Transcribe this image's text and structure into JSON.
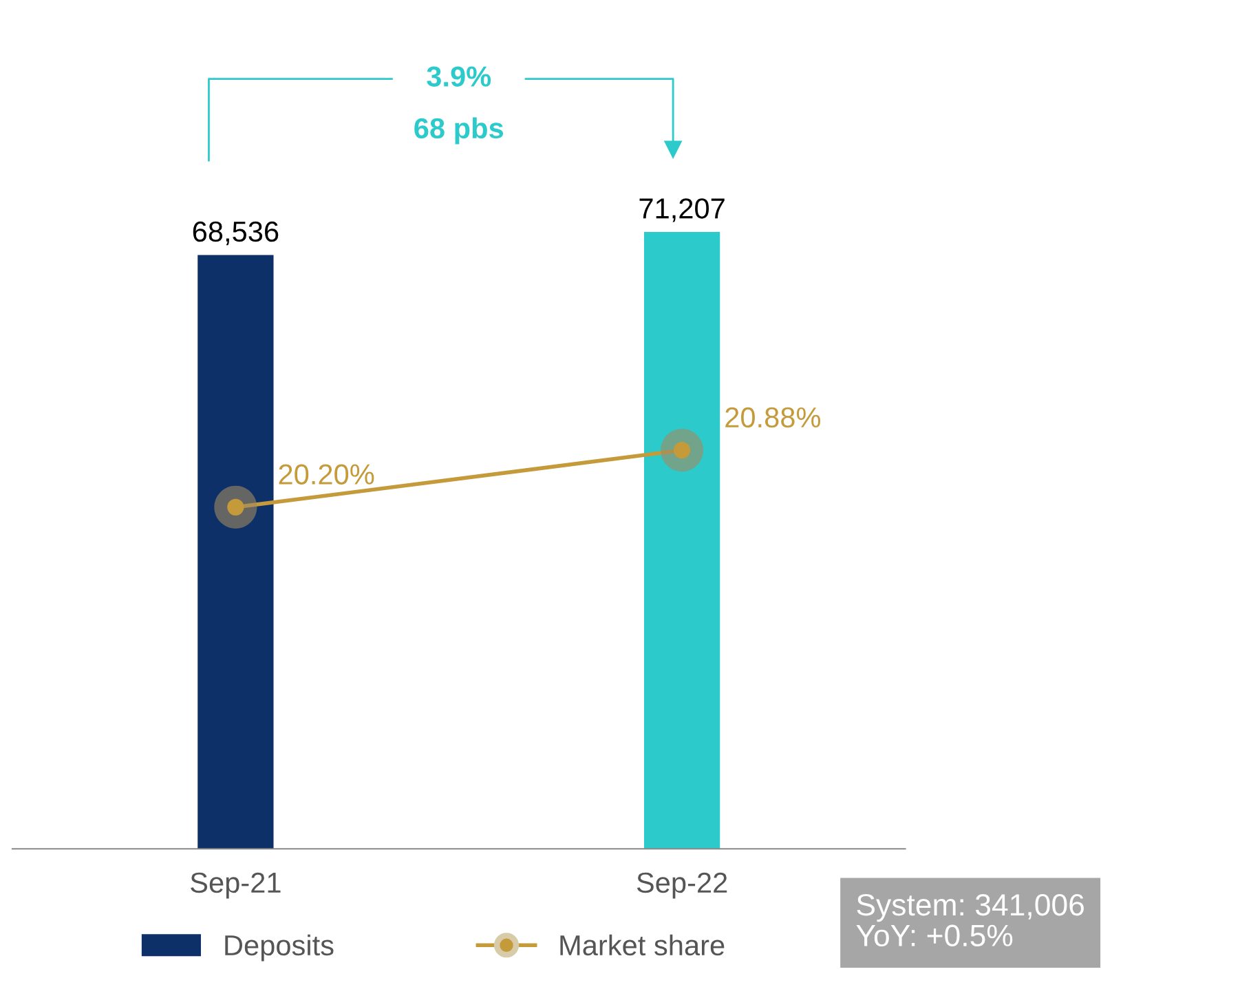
{
  "chart_data": {
    "type": "bar",
    "categories": [
      "Sep-21",
      "Sep-22"
    ],
    "series": [
      {
        "name": "Deposits",
        "color": "#0d3068",
        "colors": [
          "#0d3068",
          "#2ccacb"
        ],
        "values": [
          68536,
          71207
        ],
        "value_labels": [
          "68,536",
          "71,207"
        ]
      },
      {
        "name": "Market share",
        "type": "line",
        "axis": "y2",
        "color": "#c49a3a",
        "values": [
          20.2,
          20.88
        ],
        "value_labels": [
          "20.20%",
          "20.88%"
        ],
        "marker": "circle"
      }
    ],
    "tick_labels": "x",
    "legend": "bottom",
    "annotations": [
      "3.9%",
      "68 pbs",
      "System: 341,006",
      "YoY: +0.5%"
    ]
  }
}
